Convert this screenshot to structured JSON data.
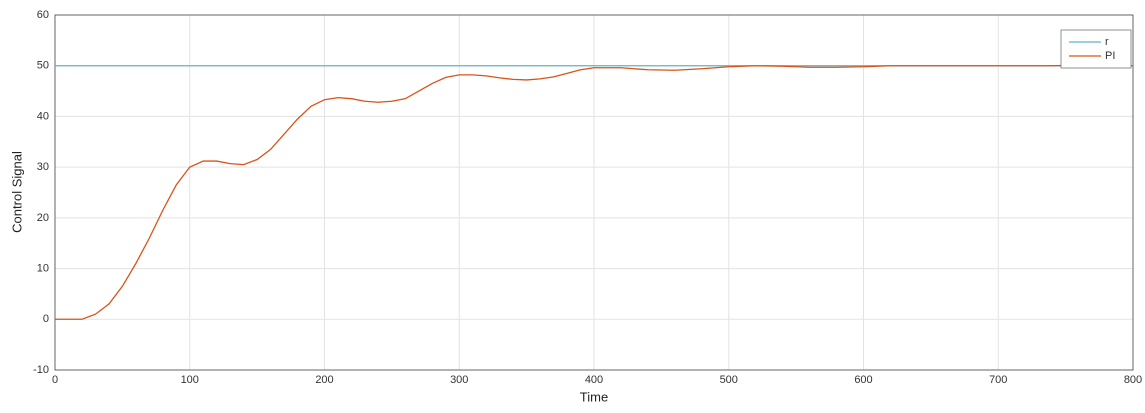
{
  "chart_data": {
    "type": "line",
    "xlabel": "Time",
    "ylabel": "Control Signal",
    "x": [
      0,
      10,
      20,
      30,
      40,
      50,
      60,
      70,
      80,
      90,
      100,
      110,
      120,
      130,
      140,
      150,
      160,
      170,
      180,
      190,
      200,
      210,
      220,
      230,
      240,
      250,
      260,
      270,
      280,
      290,
      300,
      310,
      320,
      330,
      340,
      350,
      360,
      370,
      380,
      390,
      400,
      420,
      440,
      460,
      480,
      500,
      520,
      540,
      560,
      580,
      600,
      620,
      640,
      660,
      680,
      700,
      720,
      740,
      760,
      780,
      800
    ],
    "series": [
      {
        "name": "r",
        "color": "#5fb4c8",
        "values": [
          50,
          50,
          50,
          50,
          50,
          50,
          50,
          50,
          50,
          50,
          50,
          50,
          50,
          50,
          50,
          50,
          50,
          50,
          50,
          50,
          50,
          50,
          50,
          50,
          50,
          50,
          50,
          50,
          50,
          50,
          50,
          50,
          50,
          50,
          50,
          50,
          50,
          50,
          50,
          50,
          50,
          50,
          50,
          50,
          50,
          50,
          50,
          50,
          50,
          50,
          50,
          50,
          50,
          50,
          50,
          50,
          50,
          50,
          50,
          50,
          50
        ]
      },
      {
        "name": "PI",
        "color": "#d95319",
        "values": [
          0,
          0,
          0,
          1,
          3,
          6.5,
          11,
          16,
          21.5,
          26.5,
          30,
          31.2,
          31.2,
          30.7,
          30.5,
          31.5,
          33.5,
          36.5,
          39.5,
          42,
          43.3,
          43.7,
          43.5,
          43,
          42.8,
          43,
          43.5,
          45,
          46.5,
          47.7,
          48.2,
          48.2,
          48,
          47.6,
          47.3,
          47.2,
          47.4,
          47.8,
          48.5,
          49.2,
          49.6,
          49.6,
          49.2,
          49.1,
          49.4,
          49.8,
          50,
          49.9,
          49.7,
          49.7,
          49.8,
          50,
          50,
          50,
          50,
          50,
          50,
          50,
          50.1,
          50,
          50
        ]
      }
    ],
    "xlim": [
      0,
      800
    ],
    "xticks": [
      0,
      100,
      200,
      300,
      400,
      500,
      600,
      700,
      800
    ],
    "ylim": [
      -10,
      60
    ],
    "yticks": [
      -10,
      0,
      10,
      20,
      30,
      40,
      50,
      60
    ],
    "grid": true,
    "legend": "top-right"
  }
}
